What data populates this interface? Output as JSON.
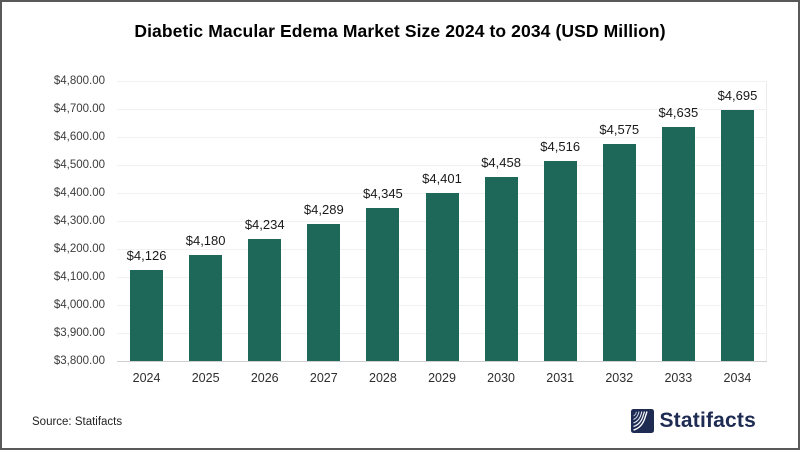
{
  "title": "Diabetic Macular Edema Market Size 2024 to 2034 (USD Million)",
  "chart_data": {
    "type": "bar",
    "title": "Diabetic Macular Edema Market Size 2024 to 2034 (USD Million)",
    "categories": [
      "2024",
      "2025",
      "2026",
      "2027",
      "2028",
      "2029",
      "2030",
      "2031",
      "2032",
      "2033",
      "2034"
    ],
    "values": [
      4126,
      4180,
      4234,
      4289,
      4345,
      4401,
      4458,
      4516,
      4575,
      4635,
      4695
    ],
    "value_labels": [
      "$4,126",
      "$4,180",
      "$4,234",
      "$4,289",
      "$4,345",
      "$4,401",
      "$4,458",
      "$4,516",
      "$4,575",
      "$4,635",
      "$4,695"
    ],
    "xlabel": "",
    "ylabel": "",
    "ylim": [
      3800,
      4800
    ],
    "ytick_values": [
      3800,
      3900,
      4000,
      4100,
      4200,
      4300,
      4400,
      4500,
      4600,
      4700,
      4800
    ],
    "ytick_labels": [
      "$3,800.00",
      "$3,900.00",
      "$4,000.00",
      "$4,100.00",
      "$4,200.00",
      "$4,300.00",
      "$4,400.00",
      "$4,500.00",
      "$4,600.00",
      "$4,700.00",
      "$4,800.00"
    ],
    "grid": true,
    "legend": false,
    "bar_color": "#1E6859"
  },
  "footer": {
    "source_label": "Source: Statifacts",
    "brand_name": "Statifacts"
  },
  "colors": {
    "bar": "#1E6859",
    "brand_navy": "#1E2B52",
    "gridline": "#f1f1f1",
    "axis_line": "#cfcfcf",
    "border": "#595959"
  }
}
